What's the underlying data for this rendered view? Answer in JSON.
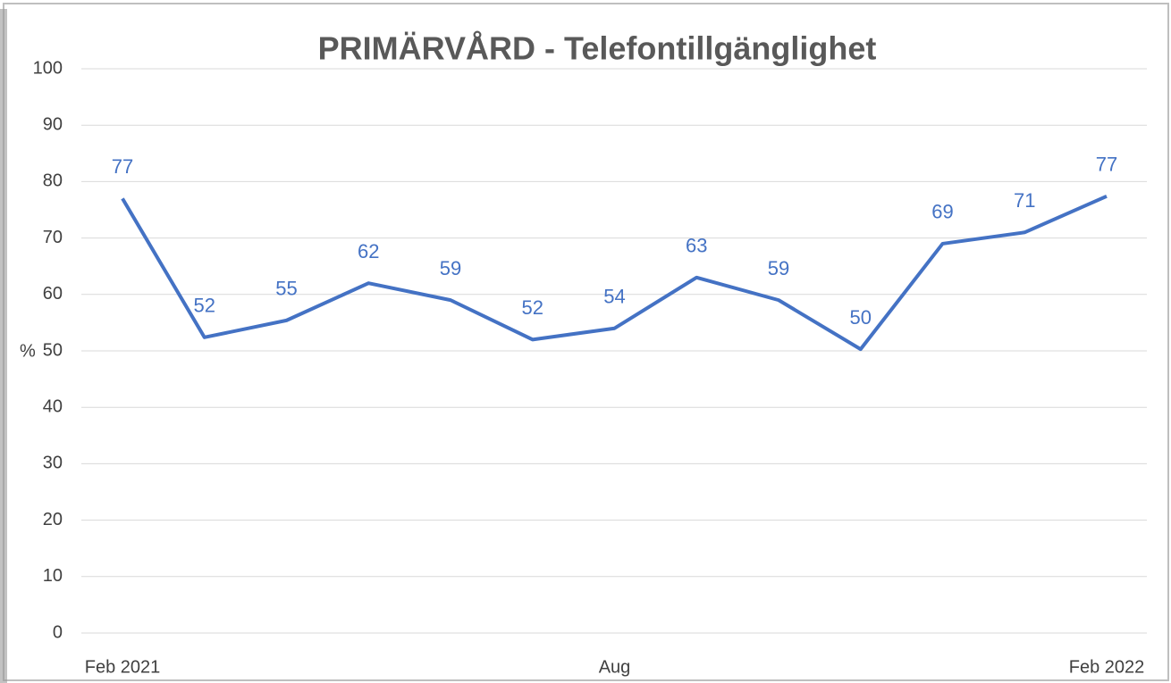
{
  "chart_data": {
    "type": "line",
    "title": "PRIMÄRVÅRD - Telefontillgänglighet",
    "y_label": "%",
    "categories": [
      "Feb 2021",
      null,
      null,
      null,
      null,
      null,
      "Aug",
      null,
      null,
      null,
      null,
      null,
      "Feb 2022"
    ],
    "series": [
      {
        "name": "Telefontillgänglighet",
        "color": "#4472c4",
        "values": [
          77,
          52.4,
          55.4,
          62,
          59,
          52,
          54,
          63,
          59,
          50.3,
          69,
          71,
          77.4
        ],
        "value_labels": [
          "77",
          "52",
          "55",
          "62",
          "59",
          "52",
          "54",
          "63",
          "59",
          "50",
          "69",
          "71",
          "77"
        ]
      }
    ],
    "ylim": [
      0,
      100
    ],
    "yticks": [
      0,
      10,
      20,
      30,
      40,
      50,
      60,
      70,
      80,
      90,
      100
    ],
    "grid": true
  }
}
